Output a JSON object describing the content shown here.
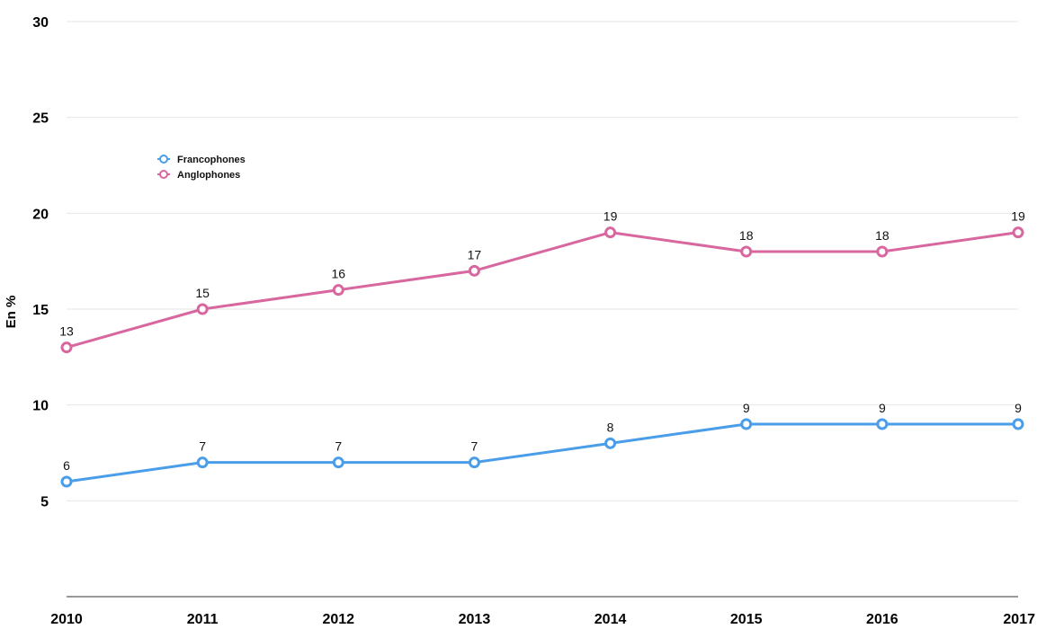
{
  "chart_data": {
    "type": "line",
    "title": "",
    "xlabel": "",
    "ylabel": "En %",
    "x": [
      "2010",
      "2011",
      "2012",
      "2013",
      "2014",
      "2015",
      "2016",
      "2017"
    ],
    "y_ticks": [
      "5",
      "10",
      "15",
      "20",
      "25",
      "30"
    ],
    "ylim": [
      0,
      30
    ],
    "grid": true,
    "legend_position": "top-left",
    "series": [
      {
        "name": "Francophones",
        "color": "#4a9de8",
        "values": [
          6,
          7,
          7,
          7,
          8,
          9,
          9,
          9
        ]
      },
      {
        "name": "Anglophones",
        "color": "#d9679f",
        "values": [
          13,
          15,
          16,
          17,
          19,
          18,
          18,
          19
        ]
      }
    ]
  }
}
